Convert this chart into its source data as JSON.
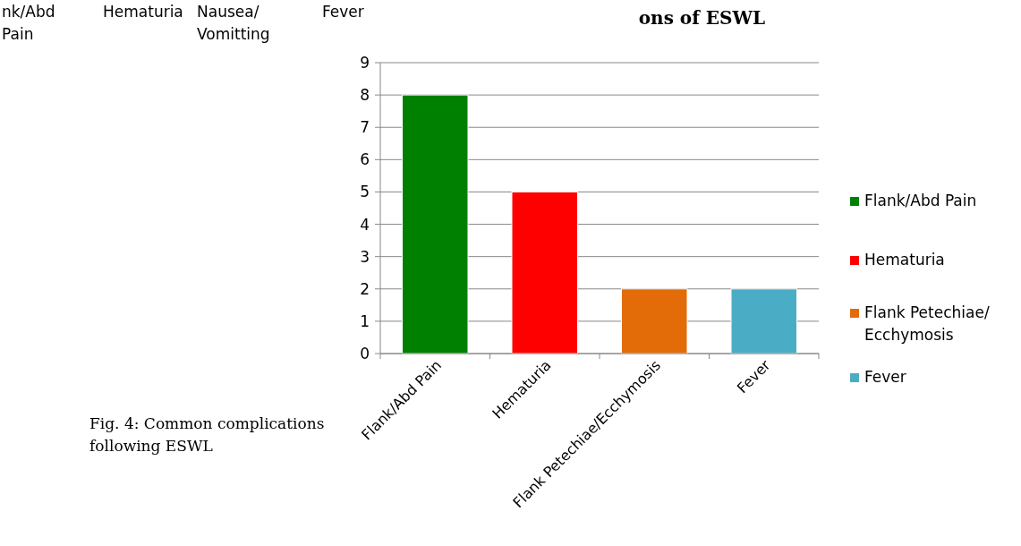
{
  "chart_data": {
    "type": "bar",
    "title": "ons of ESWL",
    "categories": [
      "Flank/Abd Pain",
      "Hematuria",
      "Flank Petechiae/Ecchymosis",
      "Fever"
    ],
    "stacked": true,
    "series": [
      {
        "name": "Flank/Abd Pain",
        "color": "#008000",
        "values": [
          8,
          null,
          null,
          null
        ]
      },
      {
        "name": "Hematuria",
        "color": "#ff0000",
        "values": [
          null,
          5,
          null,
          null
        ]
      },
      {
        "name": "Flank Petechiae/Ecchymosis",
        "color": "#e36c09",
        "values": [
          null,
          null,
          2,
          null
        ]
      },
      {
        "name": "Fever",
        "color": "#4bacc6",
        "values": [
          null,
          null,
          null,
          2
        ]
      }
    ],
    "ylim": [
      0,
      9
    ],
    "yticks": [
      0,
      1,
      2,
      3,
      4,
      5,
      6,
      7,
      8,
      9
    ],
    "grid": "y",
    "legend": "right",
    "annotations": [
      "Fig. 4: Common complications\nfollowing ESWL",
      "nk/Abd\nPain",
      "Hematuria",
      "Nausea/\nVomitting",
      "Fever"
    ]
  }
}
